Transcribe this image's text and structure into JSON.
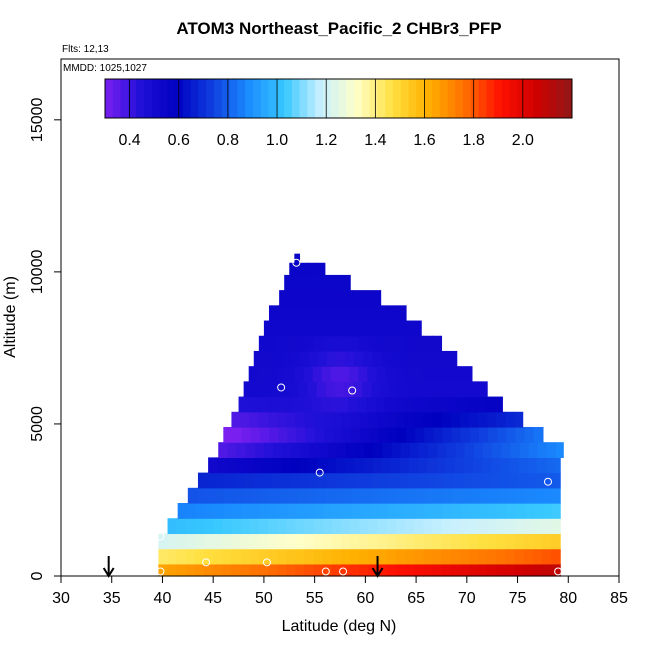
{
  "chart_data": {
    "type": "heatmap",
    "title": "ATOM3 Northeast_Pacific_2 CHBr3_PFP",
    "flights_label": "Flts: 12,13",
    "dates_label": "MMDD: 1025,1027",
    "xlabel": "Latitude (deg N)",
    "ylabel": "Altitude (m)",
    "xlim": [
      30,
      85
    ],
    "ylim": [
      0,
      17000
    ],
    "x_ticks": [
      "30",
      "35",
      "40",
      "45",
      "50",
      "55",
      "60",
      "65",
      "70",
      "75",
      "80",
      "85"
    ],
    "y_ticks": [
      "0",
      "5000",
      "10000",
      "15000"
    ],
    "colorbar": {
      "range": [
        0.3,
        2.2
      ],
      "ticks": [
        "0.4",
        "0.6",
        "0.8",
        "1.0",
        "1.2",
        "1.4",
        "1.6",
        "1.8",
        "2.0"
      ],
      "colors": [
        "#7a1ff0",
        "#2010d8",
        "#0000c0",
        "#1040e0",
        "#1a8cff",
        "#38c8ff",
        "#c8f0ff",
        "#ffffc8",
        "#ffe040",
        "#ffb000",
        "#ff7000",
        "#ff1000",
        "#d00000",
        "#901818"
      ]
    },
    "profile_rows": [
      {
        "alt": 150,
        "lat_min": 39.6,
        "lat_max": 79.2
      },
      {
        "alt": 650,
        "lat_min": 39.6,
        "lat_max": 79.2
      },
      {
        "alt": 1150,
        "lat_min": 39.6,
        "lat_max": 79.2
      },
      {
        "alt": 1650,
        "lat_min": 40.5,
        "lat_max": 79.2
      },
      {
        "alt": 2150,
        "lat_min": 41.5,
        "lat_max": 79.2
      },
      {
        "alt": 2650,
        "lat_min": 42.5,
        "lat_max": 79.2
      },
      {
        "alt": 3150,
        "lat_min": 43.5,
        "lat_max": 79.2
      },
      {
        "alt": 3650,
        "lat_min": 44.5,
        "lat_max": 79.2
      },
      {
        "alt": 4150,
        "lat_min": 45.5,
        "lat_max": 79.5
      },
      {
        "alt": 4650,
        "lat_min": 46.0,
        "lat_max": 77.5
      },
      {
        "alt": 5150,
        "lat_min": 46.8,
        "lat_max": 75.5
      },
      {
        "alt": 5650,
        "lat_min": 47.5,
        "lat_max": 73.5
      },
      {
        "alt": 6150,
        "lat_min": 48.0,
        "lat_max": 72.0
      },
      {
        "alt": 6650,
        "lat_min": 48.5,
        "lat_max": 70.5
      },
      {
        "alt": 7150,
        "lat_min": 49.0,
        "lat_max": 69.0
      },
      {
        "alt": 7650,
        "lat_min": 49.5,
        "lat_max": 67.5
      },
      {
        "alt": 8150,
        "lat_min": 50.0,
        "lat_max": 65.5
      },
      {
        "alt": 8650,
        "lat_min": 50.5,
        "lat_max": 64.0
      },
      {
        "alt": 9150,
        "lat_min": 51.5,
        "lat_max": 61.5
      },
      {
        "alt": 9650,
        "lat_min": 52.0,
        "lat_max": 58.5
      },
      {
        "alt": 10150,
        "lat_min": 52.5,
        "lat_max": 56.0
      },
      {
        "alt": 10450,
        "lat_min": 53.0,
        "lat_max": 53.5
      }
    ],
    "value_by_altitude": [
      {
        "alt": 0,
        "value": 1.95
      },
      {
        "alt": 300,
        "value": 1.8
      },
      {
        "alt": 700,
        "value": 1.6
      },
      {
        "alt": 1200,
        "value": 1.35
      },
      {
        "alt": 1700,
        "value": 1.1
      },
      {
        "alt": 2300,
        "value": 0.9
      },
      {
        "alt": 3000,
        "value": 0.75
      },
      {
        "alt": 3800,
        "value": 0.65
      },
      {
        "alt": 4800,
        "value": 0.55
      },
      {
        "alt": 6000,
        "value": 0.5
      },
      {
        "alt": 8000,
        "value": 0.52
      },
      {
        "alt": 10500,
        "value": 0.55
      }
    ],
    "samples": [
      {
        "lat": 39.8,
        "alt": 150
      },
      {
        "lat": 39.8,
        "alt": 1300
      },
      {
        "lat": 44.3,
        "alt": 450
      },
      {
        "lat": 50.3,
        "alt": 450
      },
      {
        "lat": 53.2,
        "alt": 10300
      },
      {
        "lat": 51.7,
        "alt": 6200
      },
      {
        "lat": 58.7,
        "alt": 6100
      },
      {
        "lat": 55.5,
        "alt": 3400
      },
      {
        "lat": 56.1,
        "alt": 150
      },
      {
        "lat": 57.8,
        "alt": 150
      },
      {
        "lat": 78.0,
        "alt": 3100
      },
      {
        "lat": 79.0,
        "alt": 150
      }
    ],
    "arrows": [
      {
        "lat": 34.7
      },
      {
        "lat": 61.2
      }
    ]
  }
}
